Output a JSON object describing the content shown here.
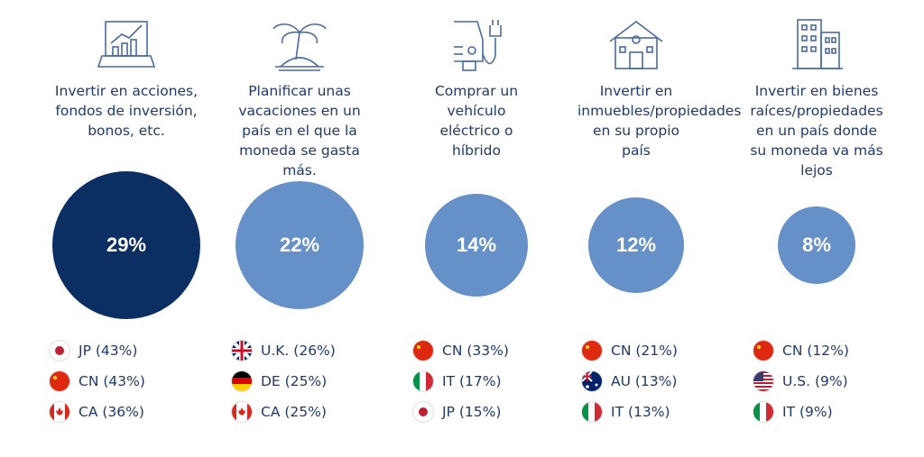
{
  "colors": {
    "dark": "#0b2f63",
    "light": "#6590c8",
    "text": "#1f3a68"
  },
  "columns": [
    {
      "icon": "laptop-chart-icon",
      "title": "Invertir en acciones, fondos de inversión, bonos, etc.",
      "percent": "29%",
      "value": 29,
      "legend": [
        {
          "flag": "jp",
          "label": "JP (43%)"
        },
        {
          "flag": "cn",
          "label": "CN (43%)"
        },
        {
          "flag": "ca",
          "label": "CA (36%)"
        }
      ]
    },
    {
      "icon": "palm-island-icon",
      "title": "Planificar unas vacaciones en un país en el que la moneda se gasta más.",
      "percent": "22%",
      "value": 22,
      "legend": [
        {
          "flag": "uk",
          "label": "U.K. (26%)"
        },
        {
          "flag": "de",
          "label": "DE (25%)"
        },
        {
          "flag": "ca",
          "label": "CA (25%)"
        }
      ]
    },
    {
      "icon": "electric-car-icon",
      "title": "Comprar un vehículo eléctrico o híbrido",
      "percent": "14%",
      "value": 14,
      "legend": [
        {
          "flag": "cn",
          "label": "CN (33%)"
        },
        {
          "flag": "it",
          "label": "IT (17%)"
        },
        {
          "flag": "jp",
          "label": "JP (15%)"
        }
      ]
    },
    {
      "icon": "house-icon",
      "title": "Invertir en inmuebles/propiedades en su propio país",
      "percent": "12%",
      "value": 12,
      "legend": [
        {
          "flag": "cn",
          "label": "CN (21%)"
        },
        {
          "flag": "au",
          "label": "AU (13%)"
        },
        {
          "flag": "it",
          "label": "IT (13%)"
        }
      ]
    },
    {
      "icon": "buildings-icon",
      "title": "Invertir en bienes raíces/propiedades en un país donde su moneda va más lejos",
      "percent": "8%",
      "value": 8,
      "legend": [
        {
          "flag": "cn",
          "label": "CN (12%)"
        },
        {
          "flag": "us",
          "label": "U.S. (9%)"
        },
        {
          "flag": "it",
          "label": "IT (9%)"
        }
      ]
    }
  ]
}
